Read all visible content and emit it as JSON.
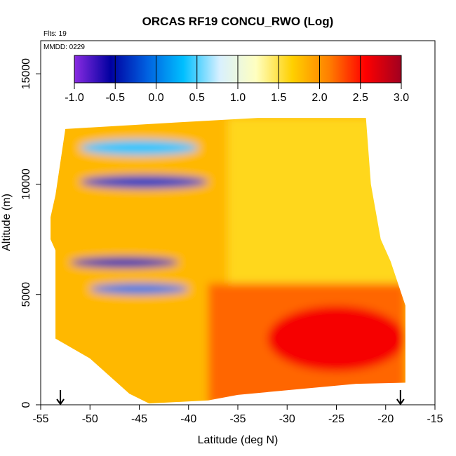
{
  "chart_data": {
    "type": "heatmap",
    "title": "ORCAS RF19 CONCU_RWO (Log)",
    "annotations": {
      "flights": "Flts: 19",
      "date": "MMDD: 0229"
    },
    "xlabel": "Latitude (deg N)",
    "ylabel": "Altitude (m)",
    "xlim": [
      -55,
      -15
    ],
    "ylim": [
      0,
      16500
    ],
    "x_ticks": [
      -55,
      -50,
      -45,
      -40,
      -35,
      -30,
      -25,
      -20,
      -15
    ],
    "y_ticks": [
      0,
      5000,
      10000,
      15000
    ],
    "colorbar": {
      "range": [
        -1.0,
        3.0
      ],
      "ticks": [
        "-1.0",
        "-0.5",
        "0.0",
        "0.5",
        "1.0",
        "1.5",
        "2.0",
        "2.5",
        "3.0"
      ],
      "colors": [
        "#8a2be2",
        "#0000a0",
        "#0060e0",
        "#00bfff",
        "#d8f0ff",
        "#ffffc0",
        "#ffd000",
        "#ff8000",
        "#ff0000",
        "#a00020"
      ]
    },
    "markers": [
      {
        "type": "arrow-down",
        "x": -53
      },
      {
        "type": "arrow-down",
        "x": -18.5
      }
    ],
    "coverage": {
      "lat_min": -53.5,
      "lat_max": -18,
      "alt_max": 13000
    },
    "features": [
      {
        "description": "low values band",
        "lat": [
          -51,
          -38
        ],
        "alt": [
          9800,
          10400
        ],
        "value": -0.3
      },
      {
        "description": "low values band",
        "lat": [
          -51,
          -39
        ],
        "alt": [
          11300,
          12000
        ],
        "value": 0.4
      },
      {
        "description": "low values band",
        "lat": [
          -52,
          -41
        ],
        "alt": [
          6200,
          6700
        ],
        "value": -0.4
      },
      {
        "description": "low values band",
        "lat": [
          -50,
          -40
        ],
        "alt": [
          5000,
          5500
        ],
        "value": 0.0
      },
      {
        "description": "high values region",
        "lat": [
          -32,
          -18
        ],
        "alt": [
          1500,
          4500
        ],
        "value": 2.6
      }
    ]
  }
}
